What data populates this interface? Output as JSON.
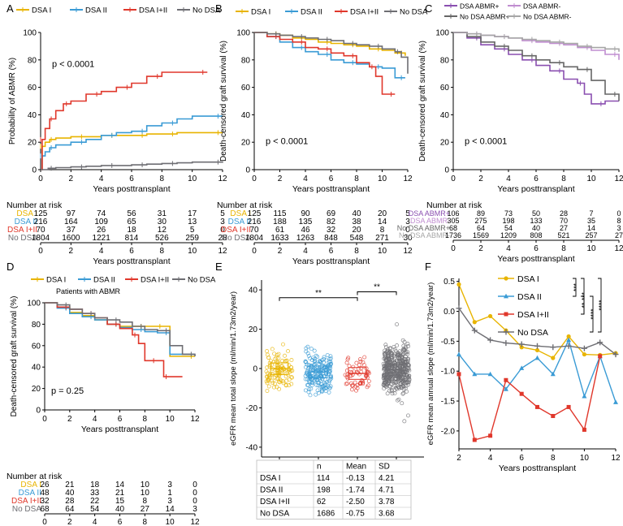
{
  "colors": {
    "dsa1": "#e8b400",
    "dsa2": "#3a9bd5",
    "dsa12": "#e0372b",
    "nodsa": "#6e6e73",
    "abmrpos": "#8a4fb0",
    "abmrneg": "#c08dd0",
    "nodsaabmrpos": "#666666",
    "nodsaabmrneg": "#a6a6a6"
  },
  "chart_data": [
    {
      "id": "A",
      "panel": "A",
      "type": "line",
      "step": true,
      "ylabel": "Probability of ABMR (%)",
      "xlabel": "Years posttransplant",
      "xlim": [
        0,
        12
      ],
      "ylim": [
        0,
        100
      ],
      "xticks": [
        0,
        2,
        4,
        6,
        8,
        10,
        12
      ],
      "yticks": [
        0,
        20,
        40,
        60,
        80,
        100
      ],
      "annotation": "p < 0.0001",
      "legend": [
        "DSA I",
        "DSA II",
        "DSA I+II",
        "No DSA"
      ],
      "series": [
        {
          "name": "DSA I",
          "color": "#e8b400",
          "x": [
            0,
            0.1,
            0.3,
            0.6,
            1,
            2,
            3,
            4,
            5,
            6,
            7,
            8,
            9,
            10,
            12
          ],
          "y": [
            0,
            17,
            20,
            22,
            23,
            24,
            24,
            25,
            25,
            25,
            26,
            26,
            27,
            27,
            27
          ]
        },
        {
          "name": "DSA II",
          "color": "#3a9bd5",
          "x": [
            0,
            0.1,
            0.3,
            0.6,
            1,
            2,
            3,
            4,
            5,
            6,
            7,
            8,
            9,
            10,
            12
          ],
          "y": [
            0,
            10,
            13,
            16,
            18,
            20,
            22,
            25,
            27,
            28,
            32,
            34,
            37,
            39,
            39
          ]
        },
        {
          "name": "DSA I+II",
          "color": "#e0372b",
          "x": [
            0,
            0.1,
            0.3,
            0.6,
            1,
            1.5,
            2,
            3,
            4,
            5,
            6,
            7,
            8,
            10,
            11
          ],
          "y": [
            0,
            22,
            30,
            37,
            43,
            48,
            50,
            55,
            57,
            60,
            63,
            68,
            71,
            71,
            71
          ]
        },
        {
          "name": "No DSA",
          "color": "#6e6e73",
          "x": [
            0,
            0.5,
            1,
            2,
            3,
            4,
            5,
            6,
            7,
            8,
            9,
            10,
            12
          ],
          "y": [
            0,
            1,
            1.5,
            2,
            2.5,
            3,
            3,
            3.5,
            4,
            4.5,
            5,
            5.5,
            6
          ]
        }
      ],
      "risk": {
        "title": "Number at risk",
        "labels": [
          "DSA I",
          "DSA II",
          "DSA I+II",
          "No DSA"
        ],
        "x": [
          0,
          2,
          4,
          6,
          8,
          10,
          12
        ],
        "rows": [
          [
            "125",
            "97",
            "74",
            "56",
            "31",
            "17",
            "5"
          ],
          [
            "216",
            "164",
            "109",
            "65",
            "30",
            "13",
            "3"
          ],
          [
            "70",
            "37",
            "26",
            "18",
            "12",
            "5",
            "0"
          ],
          [
            "1804",
            "1600",
            "1221",
            "814",
            "526",
            "259",
            "28"
          ]
        ]
      }
    },
    {
      "id": "B",
      "panel": "B",
      "type": "line",
      "step": true,
      "ylabel": "Death-censored graft survival (%)",
      "xlabel": "Years posttransplant",
      "xlim": [
        0,
        12
      ],
      "ylim": [
        0,
        100
      ],
      "xticks": [
        0,
        2,
        4,
        6,
        8,
        10,
        12
      ],
      "yticks": [
        0,
        20,
        40,
        60,
        80,
        100
      ],
      "annotation": "p < 0.0001",
      "legend": [
        "DSA I",
        "DSA II",
        "DSA I+II",
        "No DSA"
      ],
      "series": [
        {
          "name": "DSA I",
          "color": "#e8b400",
          "x": [
            0,
            1,
            2,
            3,
            4,
            5,
            6,
            7,
            8,
            9,
            10,
            11,
            11.8
          ],
          "y": [
            100,
            99,
            98,
            96,
            95,
            93,
            92,
            91,
            90,
            88,
            87,
            85,
            83
          ]
        },
        {
          "name": "DSA II",
          "color": "#3a9bd5",
          "x": [
            0,
            1,
            2,
            3,
            4,
            5,
            6,
            7,
            8,
            9,
            10,
            11,
            11.8
          ],
          "y": [
            100,
            97,
            93,
            89,
            86,
            84,
            80,
            78,
            77,
            75,
            74,
            67,
            67
          ]
        },
        {
          "name": "DSA I+II",
          "color": "#e0372b",
          "x": [
            0,
            1,
            2,
            3,
            4,
            5,
            6,
            7,
            8,
            9,
            9.5,
            10,
            11
          ],
          "y": [
            100,
            97,
            95,
            93,
            89,
            88,
            85,
            83,
            78,
            75,
            68,
            55,
            55
          ]
        },
        {
          "name": "No DSA",
          "color": "#6e6e73",
          "x": [
            0,
            1,
            2,
            3,
            4,
            5,
            6,
            7,
            8,
            9,
            10,
            11,
            11.5,
            12
          ],
          "y": [
            100,
            99,
            98,
            97,
            96,
            95,
            94,
            92,
            91,
            90,
            88,
            86,
            82,
            70
          ]
        }
      ],
      "risk": {
        "title": "Number at risk",
        "labels": [
          "DSA I",
          "DSA II",
          "DSA I+II",
          "No DSA"
        ],
        "x": [
          0,
          2,
          4,
          6,
          8,
          10,
          12
        ],
        "rows": [
          [
            "125",
            "115",
            "90",
            "69",
            "40",
            "20",
            "5"
          ],
          [
            "216",
            "188",
            "135",
            "82",
            "38",
            "14",
            "3"
          ],
          [
            "70",
            "61",
            "46",
            "32",
            "20",
            "8",
            "0"
          ],
          [
            "1804",
            "1633",
            "1263",
            "848",
            "548",
            "271",
            "30"
          ]
        ]
      }
    },
    {
      "id": "C",
      "panel": "C",
      "type": "line",
      "step": true,
      "ylabel": "Death-censored graft survival (%)",
      "xlabel": "Years posttransplant",
      "xlim": [
        0,
        12
      ],
      "ylim": [
        0,
        100
      ],
      "xticks": [
        0,
        2,
        4,
        6,
        8,
        10,
        12
      ],
      "yticks": [
        0,
        20,
        40,
        60,
        80,
        100
      ],
      "annotation": "p < 0.0001",
      "legend": [
        "DSA ABMR+",
        "DSA ABMR-",
        "No DSA ABMR+",
        "No DSA ABMR-"
      ],
      "series": [
        {
          "name": "DSA ABMR+",
          "color": "#8a4fb0",
          "x": [
            0,
            1,
            2,
            3,
            4,
            5,
            6,
            7,
            8,
            9,
            9.5,
            10,
            11,
            12
          ],
          "y": [
            100,
            96,
            91,
            88,
            84,
            80,
            76,
            72,
            66,
            63,
            55,
            48,
            50,
            50
          ]
        },
        {
          "name": "DSA ABMR-",
          "color": "#c08dd0",
          "x": [
            0,
            1,
            2,
            3,
            4,
            5,
            6,
            7,
            8,
            9,
            10,
            11,
            12
          ],
          "y": [
            100,
            99,
            98,
            97,
            96,
            94,
            93,
            92,
            91,
            89,
            87,
            84,
            80
          ]
        },
        {
          "name": "No DSA ABMR+",
          "color": "#666666",
          "x": [
            0,
            1,
            2,
            3,
            4,
            5,
            6,
            7,
            8,
            9,
            10,
            11,
            12
          ],
          "y": [
            100,
            97,
            93,
            90,
            87,
            83,
            80,
            78,
            75,
            73,
            65,
            55,
            50
          ]
        },
        {
          "name": "No DSA ABMR-",
          "color": "#a6a6a6",
          "x": [
            0,
            1,
            2,
            3,
            4,
            5,
            6,
            7,
            8,
            9,
            10,
            11,
            12
          ],
          "y": [
            100,
            99,
            98,
            97,
            96,
            95,
            94,
            93,
            92,
            90,
            89,
            88,
            86
          ]
        }
      ],
      "risk": {
        "title": "Number at risk",
        "labels": [
          "DSA ABMR+",
          "DSA ABMR-",
          "No DSA ABMR+",
          "No DSA ABMR-"
        ],
        "x": [
          0,
          2,
          4,
          6,
          8,
          10,
          12
        ],
        "rows": [
          [
            "106",
            "89",
            "73",
            "50",
            "28",
            "7",
            "0"
          ],
          [
            "305",
            "275",
            "198",
            "133",
            "70",
            "35",
            "8"
          ],
          [
            "68",
            "64",
            "54",
            "40",
            "27",
            "14",
            "3"
          ],
          [
            "1736",
            "1569",
            "1209",
            "808",
            "521",
            "257",
            "27"
          ]
        ]
      }
    },
    {
      "id": "D",
      "panel": "D",
      "type": "line",
      "step": true,
      "ylabel": "Death-censored graft survival (%)",
      "xlabel": "Years posttransplant",
      "xlim": [
        0,
        12
      ],
      "ylim": [
        0,
        100
      ],
      "xticks": [
        0,
        2,
        4,
        6,
        8,
        10,
        12
      ],
      "yticks": [
        0,
        20,
        40,
        60,
        80,
        100
      ],
      "annotation": "p = 0.25",
      "subtitle": "Patients with ABMR",
      "legend": [
        "DSA I",
        "DSA II",
        "DSA I+II",
        "No DSA"
      ],
      "series": [
        {
          "name": "DSA I",
          "color": "#e8b400",
          "x": [
            0,
            1,
            2,
            3,
            4,
            5,
            6,
            7,
            8,
            9,
            9.5,
            10,
            12
          ],
          "y": [
            100,
            96,
            91,
            88,
            84,
            80,
            78,
            78,
            78,
            78,
            78,
            50,
            50
          ]
        },
        {
          "name": "DSA II",
          "color": "#3a9bd5",
          "x": [
            0,
            1,
            2,
            3,
            4,
            5,
            6,
            7,
            8,
            9,
            10,
            12
          ],
          "y": [
            100,
            95,
            90,
            87,
            84,
            80,
            77,
            75,
            73,
            72,
            52,
            52
          ]
        },
        {
          "name": "DSA I+II",
          "color": "#e0372b",
          "x": [
            0,
            1,
            2,
            3,
            4,
            5,
            6,
            7,
            7.5,
            8,
            9,
            9.5,
            10,
            11
          ],
          "y": [
            100,
            96,
            94,
            90,
            86,
            80,
            76,
            70,
            62,
            46,
            46,
            31,
            31,
            31
          ]
        },
        {
          "name": "No DSA",
          "color": "#6e6e73",
          "x": [
            0,
            1,
            2,
            3,
            4,
            5,
            6,
            7,
            8,
            9,
            10,
            11,
            12
          ],
          "y": [
            100,
            98,
            94,
            90,
            86,
            84,
            82,
            78,
            75,
            74,
            60,
            52,
            50
          ]
        }
      ],
      "risk": {
        "title": "Number at risk",
        "labels": [
          "DSA I",
          "DSA II",
          "DSA I+II",
          "No DSA"
        ],
        "x": [
          0,
          2,
          4,
          6,
          8,
          10,
          12
        ],
        "rows": [
          [
            "26",
            "21",
            "18",
            "14",
            "10",
            "3",
            "0"
          ],
          [
            "48",
            "40",
            "33",
            "21",
            "10",
            "1",
            "0"
          ],
          [
            "32",
            "28",
            "22",
            "15",
            "8",
            "3",
            "0"
          ],
          [
            "68",
            "64",
            "54",
            "40",
            "27",
            "14",
            "3"
          ]
        ]
      }
    },
    {
      "id": "E",
      "panel": "E",
      "type": "scatter",
      "ylabel": "eGFR mean total slope (ml/min/1.73m2/year)",
      "ylim": [
        -45,
        45
      ],
      "yticks": [
        -40,
        -20,
        0,
        20,
        40
      ],
      "categories": [
        "DSA I",
        "DSA II",
        "DSA I+II",
        "No DSA"
      ],
      "colors": [
        "#e8b400",
        "#3a9bd5",
        "#e0372b",
        "#6e6e73"
      ],
      "significance": [
        {
          "from": "DSA I",
          "to": "DSA I+II",
          "label": "**"
        },
        {
          "from": "DSA I+II",
          "to": "No DSA",
          "label": "**"
        }
      ],
      "table": {
        "headers": [
          "",
          "n",
          "Mean",
          "SD"
        ],
        "rows": [
          [
            "DSA I",
            "114",
            "-0.13",
            "4.21"
          ],
          [
            "DSA II",
            "198",
            "-1.74",
            "4.71"
          ],
          [
            "DSA I+II",
            "62",
            "-2.50",
            "3.78"
          ],
          [
            "No DSA",
            "1686",
            "-0.75",
            "3.68"
          ]
        ]
      }
    },
    {
      "id": "F",
      "panel": "F",
      "type": "line",
      "ylabel": "eGFR mean annual slope (ml/min/1.73m2/year)",
      "xlabel": "Years posttransplant",
      "xlim": [
        2,
        12
      ],
      "ylim": [
        -2.3,
        0.55
      ],
      "xticks": [
        2,
        4,
        6,
        8,
        10,
        12
      ],
      "yticks": [
        -2.0,
        -1.5,
        -1.0,
        -0.5,
        0.0,
        0.5
      ],
      "legend": [
        "DSA I",
        "DSA II",
        "DSA I+II",
        "No DSA"
      ],
      "significance": [
        "***",
        "***",
        "****",
        "**",
        "****"
      ],
      "series": [
        {
          "name": "DSA I",
          "color": "#e8b400",
          "x": [
            2,
            3,
            4,
            5,
            6,
            7,
            8,
            9,
            10,
            11,
            12
          ],
          "y": [
            0.45,
            -0.18,
            -0.08,
            -0.32,
            -0.6,
            -0.65,
            -0.78,
            -0.42,
            -0.72,
            -0.73,
            -0.7
          ]
        },
        {
          "name": "DSA II",
          "color": "#3a9bd5",
          "x": [
            2,
            3,
            4,
            5,
            6,
            7,
            8,
            9,
            10,
            11,
            12
          ],
          "y": [
            -0.72,
            -1.05,
            -1.05,
            -1.3,
            -0.95,
            -0.78,
            -1.05,
            -0.48,
            -1.42,
            -0.75,
            -1.52
          ]
        },
        {
          "name": "DSA I+II",
          "color": "#e0372b",
          "x": [
            2,
            3,
            4,
            5,
            6,
            7,
            8,
            9,
            10,
            11
          ],
          "y": [
            -1.05,
            -2.15,
            -2.08,
            -1.15,
            -1.38,
            -1.6,
            -1.75,
            -1.6,
            -1.98,
            -0.75
          ]
        },
        {
          "name": "No DSA",
          "color": "#6e6e73",
          "x": [
            2,
            3,
            4,
            5,
            6,
            7,
            8,
            9,
            10,
            11,
            12
          ],
          "y": [
            0.05,
            -0.32,
            -0.48,
            -0.53,
            -0.55,
            -0.58,
            -0.6,
            -0.58,
            -0.62,
            -0.52,
            -0.72
          ]
        }
      ]
    }
  ]
}
